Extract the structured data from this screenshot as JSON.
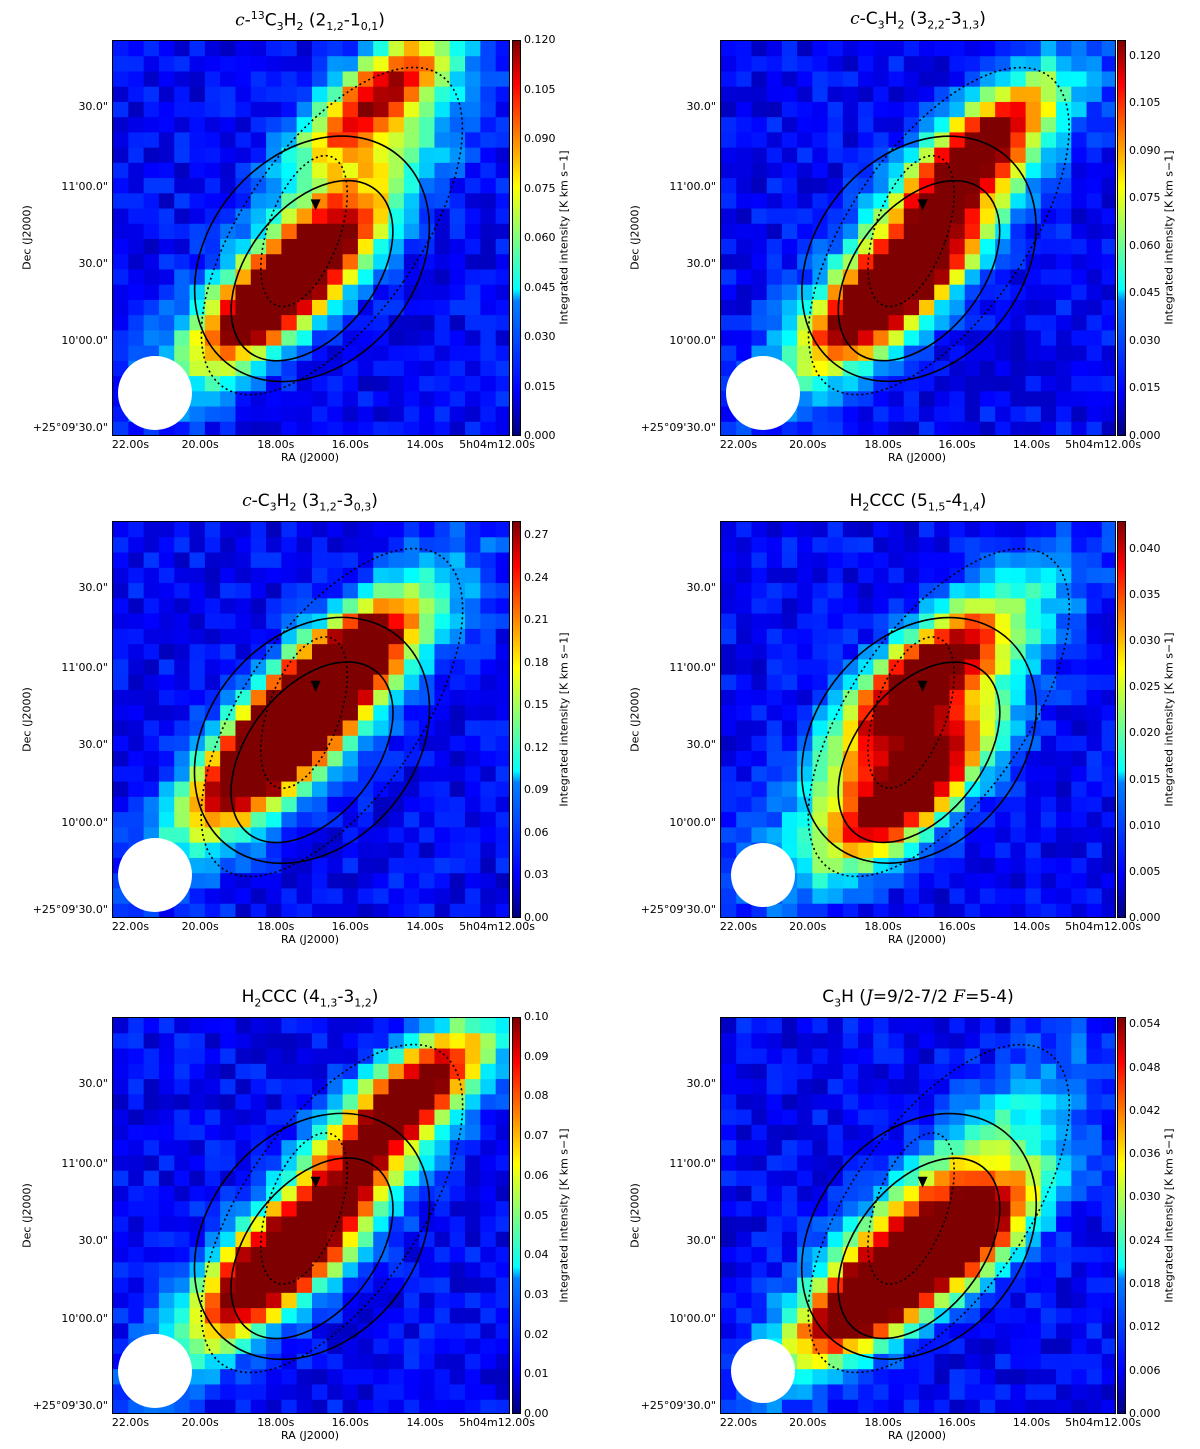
{
  "chart_data": [
    {
      "type": "heatmap",
      "title_parts": [
        "c",
        "-",
        "13",
        "C",
        "3",
        "H",
        "2",
        " (2",
        "1,2",
        "-1",
        "0,1",
        ")"
      ],
      "title": "c-13C3H2 (21,2-10,1)",
      "xlabel": "RA (J2000)",
      "ylabel": "Dec (J2000)",
      "colorbar_label": "Integrated intensity [K km s−1]",
      "x_ticks": [
        "22.00s",
        "20.00s",
        "18.00s",
        "16.00s",
        "14.00s",
        "5h04m12.00s"
      ],
      "y_ticks": [
        "+25°09'30.0\"",
        "10'00.0\"",
        "30.0\"",
        "11'00.0\"",
        "30.0\""
      ],
      "colorbar_ticks": [
        "0.000",
        "0.015",
        "0.030",
        "0.045",
        "0.060",
        "0.075",
        "0.090",
        "0.105",
        "0.120"
      ],
      "vmin": 0.0,
      "vmax": 0.12,
      "peak_positions": [
        {
          "ra_s": 17.8,
          "dec": "10'18\"",
          "value": 0.12
        },
        {
          "ra_s": 15.3,
          "dec": "11'28\"",
          "value": 0.1
        }
      ],
      "marker": {
        "ra_s": 17.0,
        "dec": "10'49\""
      }
    },
    {
      "type": "heatmap",
      "title": "c-C3H2 (32,2-31,3)",
      "xlabel": "RA (J2000)",
      "ylabel": "Dec (J2000)",
      "colorbar_label": "Integrated intensity [K km s−1]",
      "x_ticks": [
        "22.00s",
        "20.00s",
        "18.00s",
        "16.00s",
        "14.00s",
        "5h04m12.00s"
      ],
      "y_ticks": [
        "+25°09'30.0\"",
        "10'00.0\"",
        "30.0\"",
        "11'00.0\"",
        "30.0\""
      ],
      "colorbar_ticks": [
        "0.000",
        "0.015",
        "0.030",
        "0.045",
        "0.060",
        "0.075",
        "0.090",
        "0.105",
        "0.120"
      ],
      "vmin": 0.0,
      "vmax": 0.125,
      "peak_positions": [
        {
          "ra_s": 17.8,
          "dec": "10'17\"",
          "value": 0.125
        },
        {
          "ra_s": 15.5,
          "dec": "11'10\"",
          "value": 0.095
        }
      ],
      "marker": {
        "ra_s": 17.0,
        "dec": "10'49\""
      }
    },
    {
      "type": "heatmap",
      "title": "c-C3H2 (31,2-30,3)",
      "xlabel": "RA (J2000)",
      "ylabel": "Dec (J2000)",
      "colorbar_label": "Integrated intensity [K km s−1]",
      "x_ticks": [
        "22.00s",
        "20.00s",
        "18.00s",
        "16.00s",
        "14.00s",
        "5h04m12.00s"
      ],
      "y_ticks": [
        "+25°09'30.0\"",
        "10'00.0\"",
        "30.0\"",
        "11'00.0\"",
        "30.0\""
      ],
      "colorbar_ticks": [
        "0.00",
        "0.03",
        "0.06",
        "0.09",
        "0.12",
        "0.15",
        "0.18",
        "0.21",
        "0.24",
        "0.27"
      ],
      "vmin": 0.0,
      "vmax": 0.28,
      "peak_positions": [
        {
          "ra_s": 18.1,
          "dec": "10'27\"",
          "value": 0.28
        },
        {
          "ra_s": 16.6,
          "dec": "10'55\"",
          "value": 0.27
        }
      ],
      "marker": {
        "ra_s": 17.0,
        "dec": "10'49\""
      }
    },
    {
      "type": "heatmap",
      "title": "H2CCC (51,5-41,4)",
      "xlabel": "RA (J2000)",
      "ylabel": "Dec (J2000)",
      "colorbar_label": "Integrated intensity [K km s−1]",
      "x_ticks": [
        "22.00s",
        "20.00s",
        "18.00s",
        "16.00s",
        "14.00s",
        "5h04m12.00s"
      ],
      "y_ticks": [
        "+25°09'30.0\"",
        "10'00.0\"",
        "30.0\"",
        "11'00.0\"",
        "30.0\""
      ],
      "colorbar_ticks": [
        "0.000",
        "0.005",
        "0.010",
        "0.015",
        "0.020",
        "0.025",
        "0.030",
        "0.035",
        "0.040"
      ],
      "vmin": 0.0,
      "vmax": 0.043,
      "peak_positions": [
        {
          "ra_s": 17.3,
          "dec": "10'10\"",
          "value": 0.043
        },
        {
          "ra_s": 17.1,
          "dec": "10'53\"",
          "value": 0.036
        }
      ],
      "marker": {
        "ra_s": 17.0,
        "dec": "10'49\""
      }
    },
    {
      "type": "heatmap",
      "title": "H2CCC (41,3-31,2)",
      "xlabel": "RA (J2000)",
      "ylabel": "Dec (J2000)",
      "colorbar_label": "Integrated intensity [K km s−1]",
      "x_ticks": [
        "22.00s",
        "20.00s",
        "18.00s",
        "16.00s",
        "14.00s",
        "5h04m12.00s"
      ],
      "y_ticks": [
        "+25°09'30.0\"",
        "10'00.0\"",
        "30.0\"",
        "11'00.0\"",
        "30.0\""
      ],
      "colorbar_ticks": [
        "0.00",
        "0.01",
        "0.02",
        "0.03",
        "0.04",
        "0.05",
        "0.06",
        "0.07",
        "0.08",
        "0.09",
        "0.10"
      ],
      "vmin": 0.0,
      "vmax": 0.1,
      "peak_positions": [
        {
          "ra_s": 17.9,
          "dec": "10'20\"",
          "value": 0.1
        },
        {
          "ra_s": 14.4,
          "dec": "11'20\"",
          "value": 0.09
        }
      ],
      "marker": {
        "ra_s": 17.0,
        "dec": "10'49\""
      }
    },
    {
      "type": "heatmap",
      "title": "C3H (J=9/2-7/2 F=5-4)",
      "xlabel": "RA (J2000)",
      "ylabel": "Dec (J2000)",
      "colorbar_label": "Integrated intensity [K km s−1]",
      "x_ticks": [
        "22.00s",
        "20.00s",
        "18.00s",
        "16.00s",
        "14.00s",
        "5h04m12.00s"
      ],
      "y_ticks": [
        "+25°09'30.0\"",
        "10'00.0\"",
        "30.0\"",
        "11'00.0\"",
        "30.0\""
      ],
      "colorbar_ticks": [
        "0.000",
        "0.006",
        "0.012",
        "0.018",
        "0.024",
        "0.030",
        "0.036",
        "0.042",
        "0.048",
        "0.054"
      ],
      "vmin": 0.0,
      "vmax": 0.055,
      "peak_positions": [
        {
          "ra_s": 18.2,
          "dec": "10'10\"",
          "value": 0.055
        },
        {
          "ra_s": 15.7,
          "dec": "10'28\"",
          "value": 0.048
        }
      ],
      "marker": {
        "ra_s": 17.0,
        "dec": "10'49\""
      }
    }
  ],
  "titles_html": [
    "<span class=\"it\">c</span>-<sup>13</sup>C<sub>3</sub>H<sub>2</sub> (2<sub>1,2</sub>-1<sub>0,1</sub>)",
    "<span class=\"it\">c</span>-C<sub>3</sub>H<sub>2</sub> (3<sub>2,2</sub>-3<sub>1,3</sub>)",
    "<span class=\"it\">c</span>-C<sub>3</sub>H<sub>2</sub> (3<sub>1,2</sub>-3<sub>0,3</sub>)",
    "H<sub>2</sub>CCC (5<sub>1,5</sub>-4<sub>1,4</sub>)",
    "H<sub>2</sub>CCC (4<sub>1,3</sub>-3<sub>1,2</sub>)",
    "C<sub>3</sub>H (<span class=\"it\">J</span>=9/2-7/2 <span class=\"it\">F</span>=5-4)"
  ],
  "colors": {
    "background_low": "#00007f",
    "colormap": [
      "#00007f",
      "#0000ff",
      "#007fff",
      "#00ffff",
      "#7fff7f",
      "#ffff00",
      "#ff7f00",
      "#ff0000",
      "#7f0000"
    ],
    "marker": "#000000",
    "beam": "#ffffff"
  }
}
